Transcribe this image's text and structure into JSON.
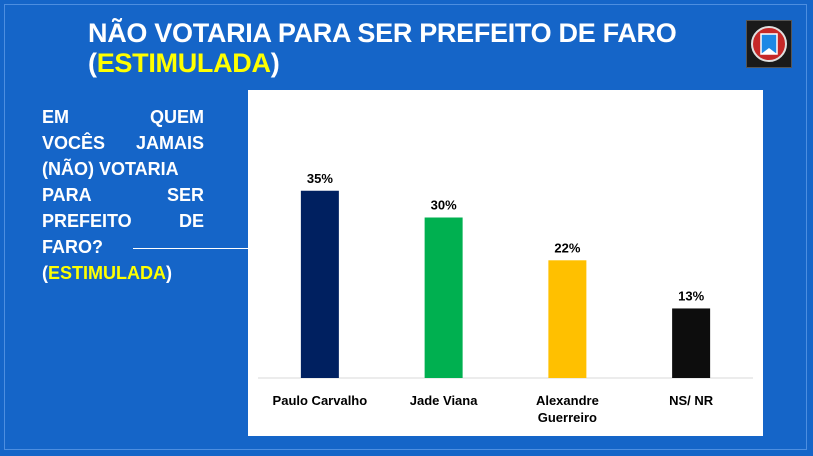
{
  "title": {
    "line1": "NÃO VOTARIA PARA SER PREFEITO DE FARO",
    "open_paren": "(",
    "highlight": "ESTIMULADA",
    "close_paren": ")"
  },
  "question": {
    "rows": [
      [
        "EM",
        "QUEM"
      ],
      [
        "VOCÊS",
        "JAMAIS"
      ],
      [
        "(NÃO) VOTARIA"
      ],
      [
        "PARA",
        "SER"
      ],
      [
        "PREFEITO",
        "DE"
      ],
      [
        "FARO?"
      ]
    ],
    "open_paren": "(",
    "highlight": "ESTIMULADA",
    "close_paren": ")"
  },
  "logo": {
    "icon": "seal-logo-icon"
  },
  "colors": {
    "background": "#1565c8",
    "highlight": "#ffff00",
    "bars": [
      "#002060",
      "#00b050",
      "#ffc000",
      "#0d0d0d"
    ]
  },
  "chart_data": {
    "type": "bar",
    "categories": [
      "Paulo Carvalho",
      "Jade Viana",
      "Alexandre Guerreiro",
      "NS/ NR"
    ],
    "category_lines": [
      [
        "Paulo Carvalho"
      ],
      [
        "Jade Viana"
      ],
      [
        "Alexandre",
        "Guerreiro"
      ],
      [
        "NS/ NR"
      ]
    ],
    "values": [
      35,
      30,
      22,
      13
    ],
    "data_labels": [
      "35%",
      "30%",
      "22%",
      "13%"
    ],
    "ylim": [
      0,
      40
    ],
    "grid": false,
    "legend": "none"
  }
}
